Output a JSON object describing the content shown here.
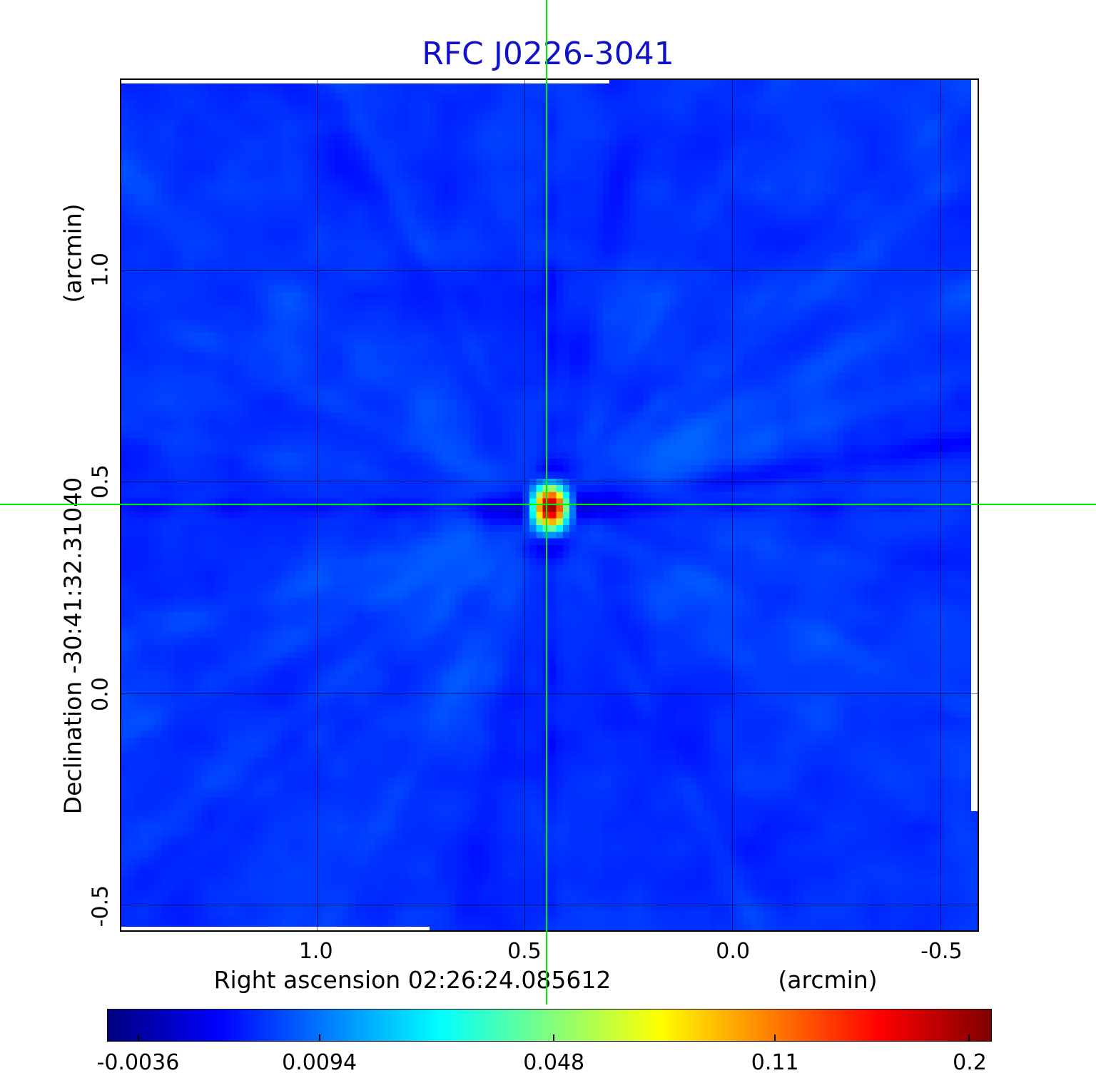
{
  "title": "RFC J0226-3041",
  "axes": {
    "y_unit": "(arcmin)",
    "y_label": "Declination  -30:41:32.31040",
    "x_label": "Right ascension  02:26:24.085612",
    "x_unit": "(arcmin)",
    "x_tick_labels": [
      "1.0",
      "0.5",
      "0.0",
      "-0.5"
    ],
    "y_tick_labels": [
      "1.0",
      "0.5",
      "0.0",
      "-0.5"
    ]
  },
  "colors": {
    "title": "#1111cc",
    "crosshair": "#00ee00",
    "grid": "#000000",
    "map_background": "#1050e8",
    "peak": "#cc0000"
  },
  "chart_data": {
    "type": "heatmap",
    "title": "RFC J0226-3041",
    "xlabel": "Right ascension 02:26:24.085612 (arcmin)",
    "ylabel": "Declination -30:41:32.31040 (arcmin)",
    "x_axis": {
      "ticks": [
        1.0,
        0.5,
        0.0,
        -0.5
      ],
      "range": [
        1.47,
        -0.59
      ],
      "direction": "inverted"
    },
    "y_axis": {
      "ticks": [
        1.0,
        0.5,
        0.0,
        -0.5
      ],
      "range": [
        -0.56,
        1.45
      ]
    },
    "colorbar": {
      "colormap": "jet",
      "scale": "sqrt",
      "tick_values": [
        -0.0036,
        0.0094,
        0.048,
        0.11,
        0.2
      ],
      "tick_labels": [
        "-0.0036",
        "0.0094",
        "0.048",
        "0.11",
        "0.2"
      ],
      "tick_positions": [
        0.035,
        0.24,
        0.505,
        0.755,
        0.975
      ]
    },
    "source": {
      "ra_arcmin": 0.446,
      "dec_arcmin": 0.447,
      "peak_value": 0.2
    },
    "crosshair": {
      "ra_arcmin": 0.446,
      "dec_arcmin": 0.447
    },
    "background_level": 0.005,
    "grid": true
  }
}
